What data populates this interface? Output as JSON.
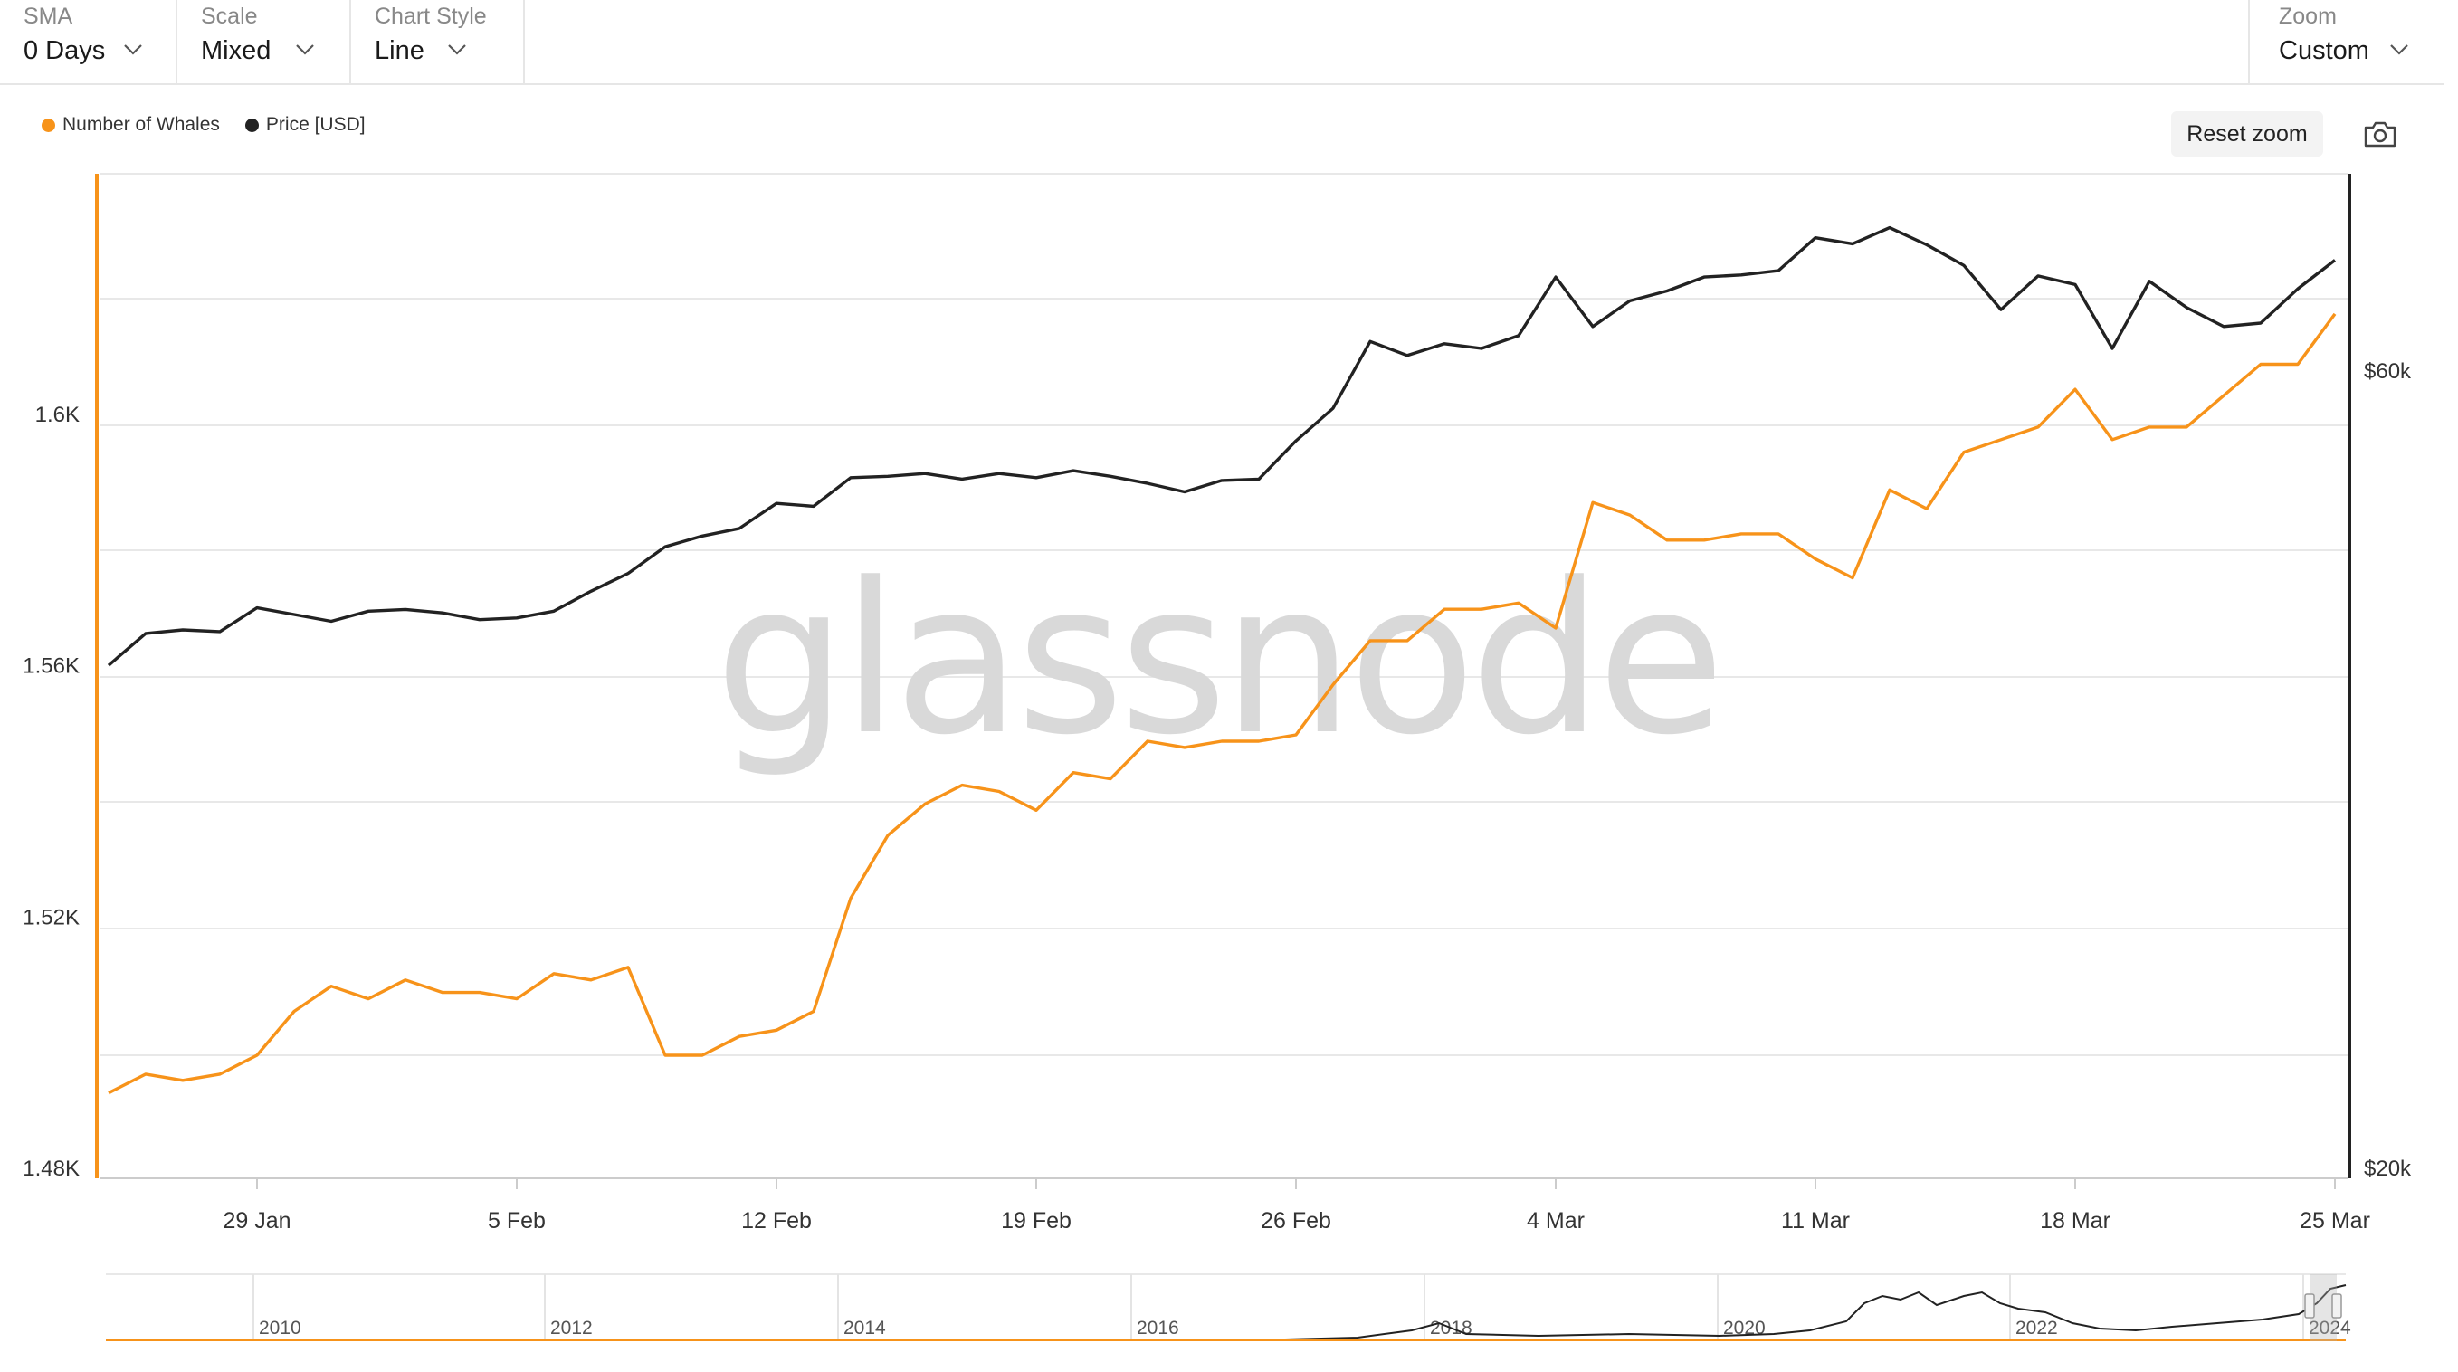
{
  "toolbar": {
    "sma": {
      "label": "SMA",
      "value": "0 Days"
    },
    "scale": {
      "label": "Scale",
      "value": "Mixed"
    },
    "chart_style": {
      "label": "Chart Style",
      "value": "Line"
    },
    "zoom": {
      "label": "Zoom",
      "value": "Custom"
    }
  },
  "reset_zoom_label": "Reset zoom",
  "icons": {
    "camera": "camera-icon",
    "chevron": "chevron-down-icon"
  },
  "watermark": "glassnode",
  "colors": {
    "whales": "#f7931a",
    "price": "#222222",
    "grid": "#e8e8e8"
  },
  "chart_data": {
    "type": "line",
    "legend_position": "top-left",
    "grid": true,
    "x_labels": [
      "29 Jan",
      "5 Feb",
      "12 Feb",
      "19 Feb",
      "26 Feb",
      "4 Mar",
      "11 Mar",
      "18 Mar",
      "25 Mar"
    ],
    "x_range": [
      "2024-01-25",
      "2024-03-25"
    ],
    "left_axis": {
      "ticks": [
        "1.48K",
        "1.52K",
        "1.56K",
        "1.6K"
      ],
      "range": [
        1480,
        1640
      ]
    },
    "right_axis": {
      "ticks": [
        "$20k",
        "$60k"
      ],
      "range": [
        20000,
        70000
      ],
      "scale": "log"
    },
    "series": [
      {
        "name": "Number of Whales",
        "axis": "left",
        "color": "#f7931a",
        "x": [
          "2024-01-25",
          "2024-01-26",
          "2024-01-27",
          "2024-01-28",
          "2024-01-29",
          "2024-01-30",
          "2024-01-31",
          "2024-02-01",
          "2024-02-02",
          "2024-02-03",
          "2024-02-04",
          "2024-02-05",
          "2024-02-06",
          "2024-02-07",
          "2024-02-08",
          "2024-02-09",
          "2024-02-10",
          "2024-02-11",
          "2024-02-12",
          "2024-02-13",
          "2024-02-14",
          "2024-02-15",
          "2024-02-16",
          "2024-02-17",
          "2024-02-18",
          "2024-02-19",
          "2024-02-20",
          "2024-02-21",
          "2024-02-22",
          "2024-02-23",
          "2024-02-24",
          "2024-02-25",
          "2024-02-26",
          "2024-02-27",
          "2024-02-28",
          "2024-02-29",
          "2024-03-01",
          "2024-03-02",
          "2024-03-03",
          "2024-03-04",
          "2024-03-05",
          "2024-03-06",
          "2024-03-07",
          "2024-03-08",
          "2024-03-09",
          "2024-03-10",
          "2024-03-11",
          "2024-03-12",
          "2024-03-13",
          "2024-03-14",
          "2024-03-15",
          "2024-03-16",
          "2024-03-17",
          "2024-03-18",
          "2024-03-19",
          "2024-03-20",
          "2024-03-21",
          "2024-03-22",
          "2024-03-23",
          "2024-03-24",
          "2024-03-25"
        ],
        "values": [
          1492,
          1495,
          1494,
          1495,
          1498,
          1505,
          1509,
          1507,
          1510,
          1508,
          1508,
          1507,
          1511,
          1510,
          1512,
          1498,
          1498,
          1501,
          1502,
          1505,
          1523,
          1533,
          1538,
          1541,
          1540,
          1537,
          1543,
          1542,
          1548,
          1547,
          1548,
          1548,
          1549,
          1557,
          1564,
          1564,
          1569,
          1569,
          1570,
          1566,
          1586,
          1584,
          1580,
          1580,
          1581,
          1581,
          1577,
          1574,
          1588,
          1585,
          1594,
          1596,
          1598,
          1604,
          1596,
          1598,
          1598,
          1603,
          1608,
          1608,
          1616
        ]
      },
      {
        "name": "Price [USD]",
        "axis": "right",
        "color": "#222222",
        "x": [
          "2024-01-25",
          "2024-01-26",
          "2024-01-27",
          "2024-01-28",
          "2024-01-29",
          "2024-01-30",
          "2024-01-31",
          "2024-02-01",
          "2024-02-02",
          "2024-02-03",
          "2024-02-04",
          "2024-02-05",
          "2024-02-06",
          "2024-02-07",
          "2024-02-08",
          "2024-02-09",
          "2024-02-10",
          "2024-02-11",
          "2024-02-12",
          "2024-02-13",
          "2024-02-14",
          "2024-02-15",
          "2024-02-16",
          "2024-02-17",
          "2024-02-18",
          "2024-02-19",
          "2024-02-20",
          "2024-02-21",
          "2024-02-22",
          "2024-02-23",
          "2024-02-24",
          "2024-02-25",
          "2024-02-26",
          "2024-02-27",
          "2024-02-28",
          "2024-02-29",
          "2024-03-01",
          "2024-03-02",
          "2024-03-03",
          "2024-03-04",
          "2024-03-05",
          "2024-03-06",
          "2024-03-07",
          "2024-03-08",
          "2024-03-09",
          "2024-03-10",
          "2024-03-11",
          "2024-03-12",
          "2024-03-13",
          "2024-03-14",
          "2024-03-15",
          "2024-03-16",
          "2024-03-17",
          "2024-03-18",
          "2024-03-19",
          "2024-03-20",
          "2024-03-21",
          "2024-03-22",
          "2024-03-23",
          "2024-03-24",
          "2024-03-25"
        ],
        "values": [
          40000,
          41800,
          42000,
          41900,
          43300,
          42900,
          42500,
          43100,
          43200,
          43000,
          42600,
          42700,
          43100,
          44300,
          45400,
          47100,
          47800,
          48300,
          50000,
          49800,
          51800,
          51900,
          52100,
          51700,
          52100,
          51800,
          52300,
          51900,
          51400,
          50800,
          51600,
          51700,
          54500,
          57000,
          62500,
          61300,
          62300,
          61900,
          63000,
          68300,
          63800,
          66100,
          67000,
          68300,
          68500,
          68900,
          72100,
          71500,
          73100,
          71400,
          69400,
          65300,
          68400,
          67600,
          61900,
          67900,
          65500,
          63800,
          64100,
          67200,
          69900
        ]
      }
    ],
    "navigator": {
      "x_labels": [
        "2010",
        "2012",
        "2014",
        "2016",
        "2018",
        "2020",
        "2022",
        "2024"
      ]
    }
  }
}
